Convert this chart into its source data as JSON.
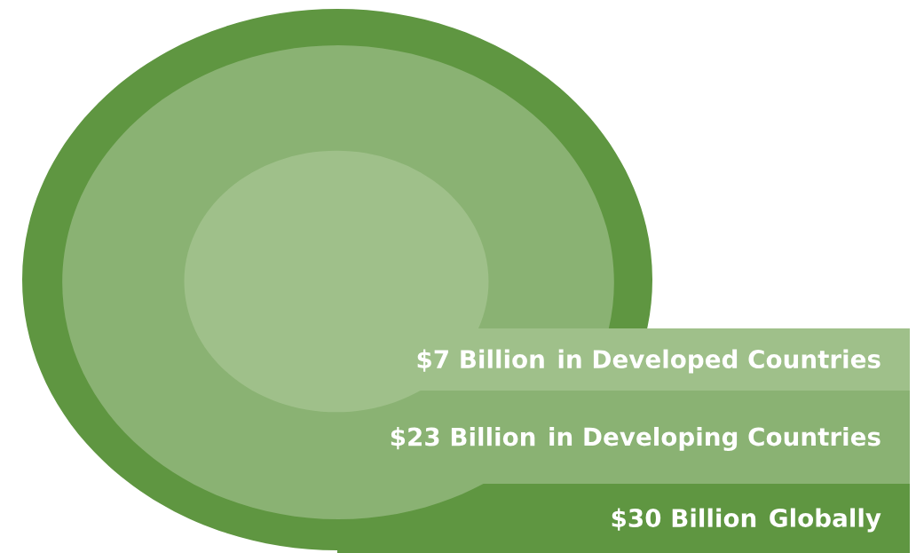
{
  "chart_data": {
    "type": "other",
    "categories": [
      "in Developed Countries",
      "in Developing Countries",
      "Globally"
    ],
    "values": [
      7,
      23,
      30
    ],
    "value_labels": [
      "$7 Billion",
      "$23 Billion",
      "$30 Billion"
    ],
    "colors": [
      "#9fc08a",
      "#8ab273",
      "#5f9641"
    ]
  }
}
